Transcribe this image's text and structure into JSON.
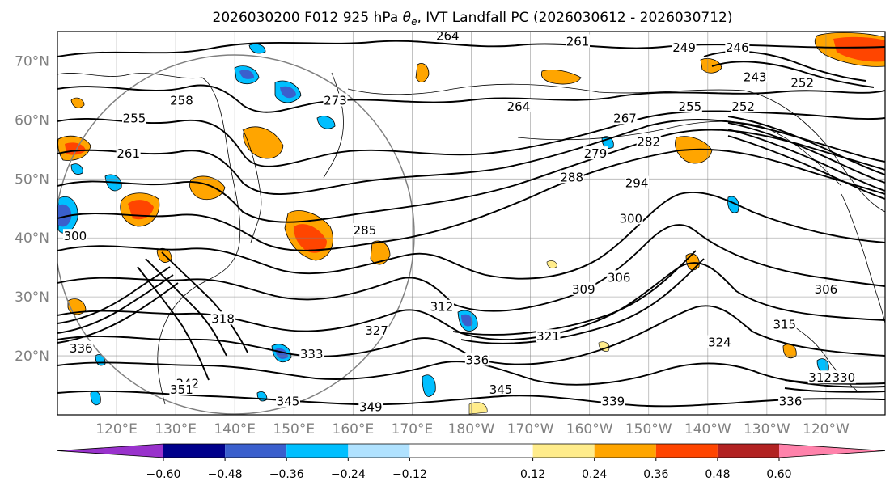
{
  "chart_data": {
    "type": "contour-map",
    "title": {
      "prefix": "2026030200 F012 925 hPa ",
      "symbol": "θ",
      "subscript": "e",
      "suffix": ", IVT Landfall PC (2026030612 - 2026030712)"
    },
    "lat_ticks": [
      "70°N",
      "60°N",
      "50°N",
      "40°N",
      "30°N",
      "20°N"
    ],
    "lat_values": [
      70,
      60,
      50,
      40,
      30,
      20
    ],
    "lon_ticks": [
      "120°E",
      "130°E",
      "140°E",
      "150°E",
      "160°E",
      "170°E",
      "180°W",
      "170°W",
      "160°W",
      "150°W",
      "140°W",
      "130°W",
      "120°W"
    ],
    "lon_values": [
      120,
      130,
      140,
      150,
      160,
      170,
      180,
      190,
      200,
      210,
      220,
      230,
      240
    ],
    "extent": {
      "lon": [
        110,
        250
      ],
      "lat": [
        10,
        75
      ]
    },
    "grid": true,
    "colorbar": {
      "location": "bottom",
      "extend": "both",
      "boundaries": [
        -0.72,
        -0.6,
        -0.48,
        -0.36,
        -0.24,
        -0.12,
        0.12,
        0.24,
        0.36,
        0.48,
        0.6,
        0.72
      ],
      "colors": [
        "#9932cc",
        "#00008b",
        "#3a5fcd",
        "#00bfff",
        "#b0e2ff",
        "#ffffff",
        "#ffec8b",
        "#ffa500",
        "#ff4500",
        "#b22222",
        "#ff82ab"
      ],
      "tick_labels": [
        "−0.60",
        "−0.48",
        "−0.36",
        "−0.24",
        "−0.12",
        "0.12",
        "0.24",
        "0.36",
        "0.48",
        "0.60"
      ],
      "tick_values": [
        -0.6,
        -0.48,
        -0.36,
        -0.24,
        -0.12,
        0.12,
        0.24,
        0.36,
        0.48,
        0.6
      ]
    },
    "contour_labels": [
      {
        "text": "264",
        "lon": 176,
        "lat": 74
      },
      {
        "text": "261",
        "lon": 198,
        "lat": 73
      },
      {
        "text": "246",
        "lon": 225,
        "lat": 72
      },
      {
        "text": "249",
        "lon": 216,
        "lat": 72
      },
      {
        "text": "243",
        "lon": 228,
        "lat": 67
      },
      {
        "text": "252",
        "lon": 236,
        "lat": 66
      },
      {
        "text": "273",
        "lon": 157,
        "lat": 63
      },
      {
        "text": "258",
        "lon": 131,
        "lat": 63
      },
      {
        "text": "264",
        "lon": 188,
        "lat": 62
      },
      {
        "text": "255",
        "lon": 123,
        "lat": 60
      },
      {
        "text": "255",
        "lon": 217,
        "lat": 62
      },
      {
        "text": "252",
        "lon": 226,
        "lat": 62
      },
      {
        "text": "267",
        "lon": 206,
        "lat": 60
      },
      {
        "text": "261",
        "lon": 122,
        "lat": 54
      },
      {
        "text": "279",
        "lon": 201,
        "lat": 54
      },
      {
        "text": "282",
        "lon": 210,
        "lat": 56
      },
      {
        "text": "288",
        "lon": 197,
        "lat": 50
      },
      {
        "text": "294",
        "lon": 208,
        "lat": 49
      },
      {
        "text": "300",
        "lon": 207,
        "lat": 43
      },
      {
        "text": "285",
        "lon": 162,
        "lat": 41
      },
      {
        "text": "300",
        "lon": 113,
        "lat": 40
      },
      {
        "text": "309",
        "lon": 199,
        "lat": 31
      },
      {
        "text": "306",
        "lon": 205,
        "lat": 33
      },
      {
        "text": "306",
        "lon": 240,
        "lat": 31
      },
      {
        "text": "312",
        "lon": 175,
        "lat": 28
      },
      {
        "text": "318",
        "lon": 138,
        "lat": 26
      },
      {
        "text": "315",
        "lon": 233,
        "lat": 25
      },
      {
        "text": "321",
        "lon": 193,
        "lat": 23
      },
      {
        "text": "324",
        "lon": 222,
        "lat": 22
      },
      {
        "text": "327",
        "lon": 164,
        "lat": 24
      },
      {
        "text": "333",
        "lon": 153,
        "lat": 20
      },
      {
        "text": "336",
        "lon": 114,
        "lat": 21
      },
      {
        "text": "336",
        "lon": 181,
        "lat": 19
      },
      {
        "text": "342",
        "lon": 132,
        "lat": 15
      },
      {
        "text": "345",
        "lon": 185,
        "lat": 14
      },
      {
        "text": "345",
        "lon": 149,
        "lat": 12
      },
      {
        "text": "349",
        "lon": 163,
        "lat": 11
      },
      {
        "text": "351",
        "lon": 131,
        "lat": 14
      },
      {
        "text": "339",
        "lon": 204,
        "lat": 12
      },
      {
        "text": "336",
        "lon": 234,
        "lat": 12
      },
      {
        "text": "312",
        "lon": 239,
        "lat": 16
      },
      {
        "text": "330",
        "lon": 243,
        "lat": 16
      }
    ]
  }
}
